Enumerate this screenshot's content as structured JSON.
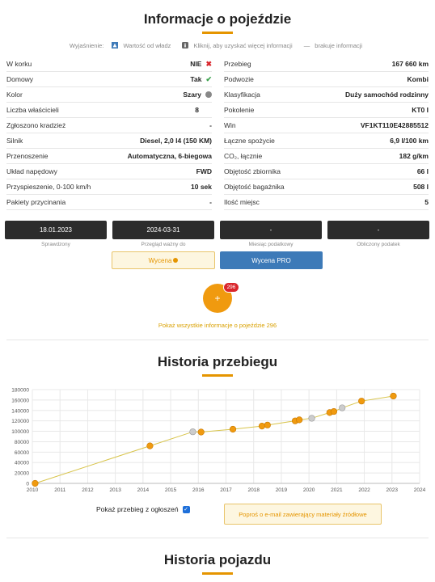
{
  "header": {
    "title": "Informacje o pojeździe"
  },
  "legend": {
    "prefix": "Wyjaśnienie:",
    "official": "Wartość od władz",
    "click": "Kliknij, aby uzyskać więcej informacji",
    "missing": "brakuje informacji"
  },
  "left_rows": [
    {
      "label": "W korku",
      "value": "NIE",
      "marker": "x-mark"
    },
    {
      "label": "Domowy",
      "value": "Tak",
      "marker": "check"
    },
    {
      "label": "Kolor",
      "value": "Szary",
      "marker": "grey-dot"
    },
    {
      "label": "Liczba właścicieli",
      "value": "8"
    },
    {
      "label": "Zgłoszono kradzież",
      "value": "-"
    },
    {
      "label": "Silnik",
      "value": "Diesel, 2,0 l4 (150 KM)"
    },
    {
      "label": "Przenoszenie",
      "value": "Automatyczna, 6-biegowa"
    },
    {
      "label": "Układ napędowy",
      "value": "FWD"
    },
    {
      "label": "Przyspieszenie, 0-100 km/h",
      "value": "10 sek"
    },
    {
      "label": "Pakiety przycinania",
      "value": "-"
    }
  ],
  "right_rows": [
    {
      "label": "Przebieg",
      "value": "167 660 km"
    },
    {
      "label": "Podwozie",
      "value": "Kombi"
    },
    {
      "label": "Klasyfikacja",
      "value": "Duży samochód rodzinny"
    },
    {
      "label": "Pokolenie",
      "value": "KT0 I"
    },
    {
      "label": "Win",
      "value": "VF1KT110E42885512"
    },
    {
      "label": "Łączne spożycie",
      "value": "6,9 l/100 km"
    },
    {
      "label": "CO₂, łącznie",
      "value": "182 g/km"
    },
    {
      "label": "Objętość zbiornika",
      "value": "66 l"
    },
    {
      "label": "Objętość bagażnika",
      "value": "508 l"
    },
    {
      "label": "Ilość miejsc",
      "value": "5"
    }
  ],
  "boxes": [
    {
      "value": "18.01.2023",
      "caption": "Sprawdzony"
    },
    {
      "value": "2024-03-31",
      "caption": "Przegląd ważny do"
    },
    {
      "value": "-",
      "caption": "Miesiąc podatkowy"
    },
    {
      "value": "-",
      "caption": "Obliczony podatek"
    }
  ],
  "actions": {
    "wycena": "Wycena",
    "wycena_pro": "Wycena PRO"
  },
  "more": {
    "icon_text": "+",
    "badge": "296",
    "link": "Pokaż wszystkie informacje o pojeździe 296"
  },
  "mileage": {
    "title": "Historia przebiegu",
    "show_ads_label": "Pokaż przebieg z ogłoszeń",
    "email_button": "Poproś o e-mail zawierający materiały źródłowe"
  },
  "history": {
    "title": "Historia pojazdu"
  },
  "colors": {
    "accent": "#e59500",
    "marker": "#f09a0f",
    "ad_marker": "#cccccc",
    "line": "#d8c44a"
  },
  "chart_data": {
    "type": "line",
    "xlim": [
      2010,
      2024
    ],
    "ylim": [
      0,
      180000
    ],
    "x_ticks": [
      "2010",
      "2011",
      "2012",
      "2013",
      "2014",
      "2015",
      "2016",
      "2017",
      "2018",
      "2019",
      "2020",
      "2021",
      "2022",
      "2023",
      "2024"
    ],
    "y_ticks": [
      "0",
      "20000",
      "40000",
      "60000",
      "80000",
      "100000",
      "120000",
      "140000",
      "160000",
      "180000"
    ],
    "grid": true,
    "series": [
      {
        "points": [
          {
            "x": 2010.1,
            "y": 0,
            "kind": "official"
          },
          {
            "x": 2014.25,
            "y": 72000,
            "kind": "official"
          },
          {
            "x": 2015.8,
            "y": 99000,
            "kind": "ad"
          },
          {
            "x": 2016.1,
            "y": 98500,
            "kind": "official"
          },
          {
            "x": 2017.25,
            "y": 104000,
            "kind": "official"
          },
          {
            "x": 2018.3,
            "y": 110000,
            "kind": "official"
          },
          {
            "x": 2018.5,
            "y": 112000,
            "kind": "official"
          },
          {
            "x": 2019.5,
            "y": 120000,
            "kind": "official"
          },
          {
            "x": 2019.65,
            "y": 122000,
            "kind": "official"
          },
          {
            "x": 2020.1,
            "y": 125000,
            "kind": "ad"
          },
          {
            "x": 2020.75,
            "y": 136000,
            "kind": "official"
          },
          {
            "x": 2020.9,
            "y": 138000,
            "kind": "official"
          },
          {
            "x": 2021.2,
            "y": 145000,
            "kind": "ad"
          },
          {
            "x": 2021.9,
            "y": 158000,
            "kind": "official"
          },
          {
            "x": 2023.05,
            "y": 167660,
            "kind": "official"
          }
        ]
      }
    ]
  }
}
